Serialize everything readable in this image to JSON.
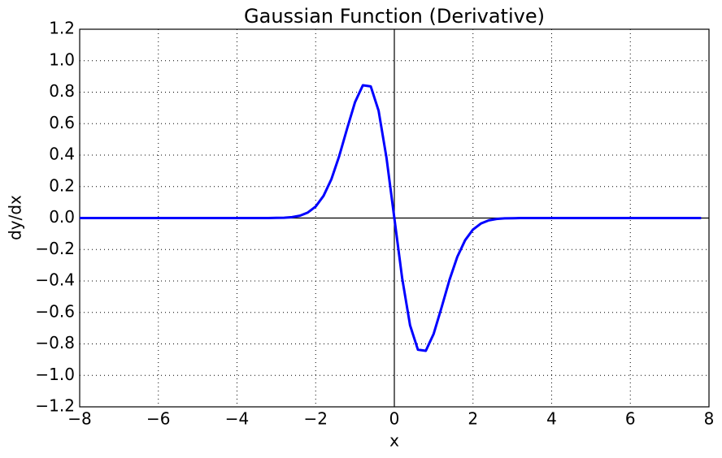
{
  "chart_data": {
    "type": "line",
    "title": "Gaussian Function (Derivative)",
    "x_label": "x",
    "y_label": "dy/dx",
    "x": [
      -8,
      -7.8,
      -7.6,
      -7.4,
      -7.2,
      -7,
      -6.8,
      -6.6,
      -6.4,
      -6.2,
      -6,
      -5.8,
      -5.6,
      -5.4,
      -5.2,
      -5,
      -4.8,
      -4.6,
      -4.4,
      -4.2,
      -4,
      -3.8,
      -3.6,
      -3.4,
      -3.2,
      -3,
      -2.8,
      -2.6,
      -2.4,
      -2.2,
      -2,
      -1.8,
      -1.6,
      -1.4,
      -1.2,
      -1,
      -0.8,
      -0.6,
      -0.4,
      -0.2,
      0,
      0.2,
      0.4,
      0.6,
      0.8,
      1,
      1.2,
      1.4,
      1.6,
      1.8,
      2,
      2.2,
      2.4,
      2.6,
      2.8,
      3,
      3.2,
      3.4,
      3.6,
      3.8,
      4,
      4.2,
      4.4,
      4.6,
      4.8,
      5,
      5.2,
      5.4,
      5.6,
      5.8,
      6,
      6.2,
      6.4,
      6.6,
      6.8,
      7,
      7.2,
      7.4,
      7.6,
      7.8
    ],
    "series": [
      {
        "color": "#0000ff",
        "values": [
          0,
          0,
          0,
          0,
          0,
          0,
          0,
          0,
          0,
          0,
          0,
          0,
          0,
          0,
          0,
          0,
          0,
          0,
          0,
          0,
          0,
          0,
          0,
          0,
          0,
          0.001,
          0.002,
          0.006,
          0.015,
          0.035,
          0.073,
          0.141,
          0.247,
          0.395,
          0.569,
          0.736,
          0.844,
          0.837,
          0.682,
          0.384,
          0,
          -0.384,
          -0.682,
          -0.837,
          -0.844,
          -0.736,
          -0.569,
          -0.395,
          -0.247,
          -0.141,
          -0.073,
          -0.035,
          -0.015,
          -0.006,
          -0.002,
          -0.001,
          0,
          0,
          0,
          0,
          0,
          0,
          0,
          0,
          0,
          0,
          0,
          0,
          0,
          0,
          0,
          0,
          0,
          0,
          0,
          0,
          0,
          0,
          0,
          0
        ]
      }
    ],
    "xlim": [
      -8,
      8
    ],
    "xticks": [
      {
        "value": -8,
        "label": "−8"
      },
      {
        "value": -6,
        "label": "−6"
      },
      {
        "value": -4,
        "label": "−4"
      },
      {
        "value": -2,
        "label": "−2"
      },
      0,
      2,
      4,
      6,
      8
    ],
    "ylim": [
      -1.2,
      1.2
    ],
    "yticks": [
      {
        "value": -1.2,
        "label": "−1.2"
      },
      {
        "value": -1,
        "label": "−1.0"
      },
      {
        "value": -0.8,
        "label": "−0.8"
      },
      {
        "value": -0.6,
        "label": "−0.6"
      },
      {
        "value": -0.4,
        "label": "−0.4"
      },
      {
        "value": -0.2,
        "label": "−0.2"
      },
      {
        "value": 0,
        "label": "0.0"
      },
      {
        "value": 0.2,
        "label": "0.2"
      },
      {
        "value": 0.4,
        "label": "0.4"
      },
      {
        "value": 0.6,
        "label": "0.6"
      },
      {
        "value": 0.8,
        "label": "0.8"
      },
      {
        "value": 1,
        "label": "1.0"
      },
      {
        "value": 1.2,
        "label": "1.2"
      }
    ],
    "grid": true
  }
}
